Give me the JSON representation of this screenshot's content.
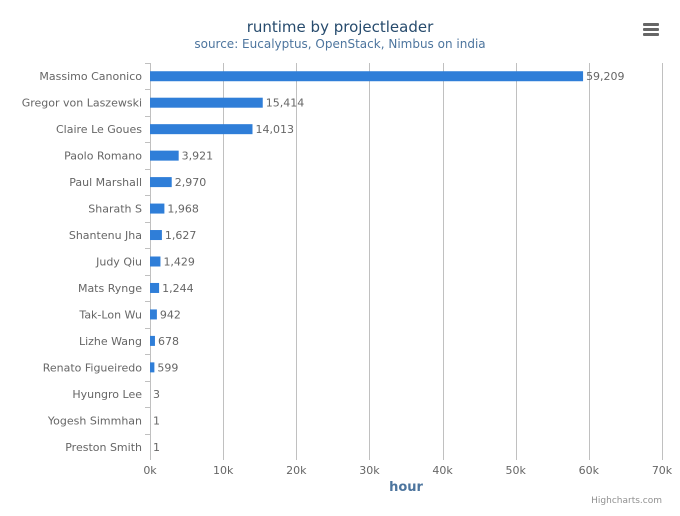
{
  "chart_data": {
    "type": "bar",
    "orientation": "horizontal",
    "title": "runtime by projectleader",
    "subtitle": "source: Eucalyptus, OpenStack, Nimbus on india",
    "xlabel": "hour",
    "ylabel": "",
    "xlim": [
      0,
      70000
    ],
    "ticks": [
      0,
      10000,
      20000,
      30000,
      40000,
      50000,
      60000,
      70000
    ],
    "tick_labels": [
      "0k",
      "10k",
      "20k",
      "30k",
      "40k",
      "50k",
      "60k",
      "70k"
    ],
    "grid": true,
    "categories": [
      "Massimo Canonico",
      "Gregor von Laszewski",
      "Claire Le Goues",
      "Paolo Romano",
      "Paul Marshall",
      "Sharath S",
      "Shantenu Jha",
      "Judy Qiu",
      "Mats Rynge",
      "Tak-Lon Wu",
      "Lizhe Wang",
      "Renato Figueiredo",
      "Hyungro Lee",
      "Yogesh Simmhan",
      "Preston Smith"
    ],
    "values": [
      59209,
      15414,
      14013,
      3921,
      2970,
      1968,
      1627,
      1429,
      1244,
      942,
      678,
      599,
      3,
      1,
      1
    ],
    "value_labels": [
      "59,209",
      "15,414",
      "14,013",
      "3,921",
      "2,970",
      "1,968",
      "1,627",
      "1,429",
      "1,244",
      "942",
      "678",
      "599",
      "3",
      "1",
      "1"
    ],
    "bar_color": "#2f7ed8",
    "credits": "Highcharts.com"
  },
  "ui": {
    "menu_icon": "hamburger-menu-icon"
  },
  "colors": {
    "title": "#274b6d",
    "subtitle": "#4d759e",
    "axis_label": "#4d759e",
    "text": "#666666",
    "grid": "#c0c0c0",
    "credits": "#909090"
  }
}
